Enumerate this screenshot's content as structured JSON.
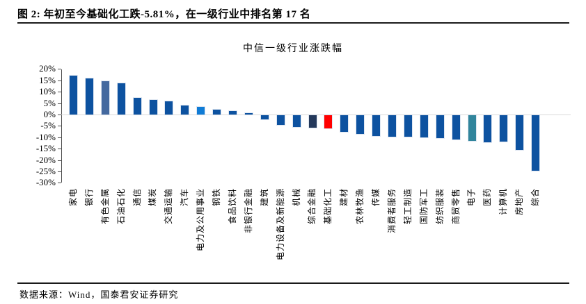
{
  "header": {
    "title": "图 2:  年初至今基础化工跌-5.81%，在一级行业中排名第 17 名"
  },
  "footer": {
    "source": "数据来源：Wind，国泰君安证券研究"
  },
  "chart_data": {
    "type": "bar",
    "title": "中信一级行业涨跌幅",
    "xlabel": "",
    "ylabel": "",
    "ylim": [
      -30,
      20
    ],
    "ytick_step": 5,
    "ytick_labels": [
      "20%",
      "15%",
      "10%",
      "5%",
      "0%",
      "-5%",
      "-10%",
      "-15%",
      "-20%",
      "-25%",
      "-30%"
    ],
    "grid": "zero-baseline-only",
    "legend_position": "none",
    "x_label_rotation": -90,
    "categories": [
      "家电",
      "银行",
      "有色金属",
      "石油石化",
      "通信",
      "煤炭",
      "交通运输",
      "汽车",
      "电力及公用事业",
      "钢铁",
      "食品饮料",
      "非银行金融",
      "建筑",
      "电力设备及新能源",
      "机械",
      "综合金融",
      "基础化工",
      "建材",
      "农林牧渔",
      "传媒",
      "消费者服务",
      "轻工制造",
      "国防军工",
      "纺织服装",
      "商贸零售",
      "电子",
      "医药",
      "计算机",
      "房地产",
      "综合"
    ],
    "values": [
      17.0,
      16.0,
      14.6,
      13.7,
      7.3,
      6.5,
      5.8,
      4.0,
      3.4,
      2.1,
      1.6,
      0.5,
      -1.9,
      -4.3,
      -5.2,
      -5.5,
      -5.81,
      -7.2,
      -8.2,
      -9.2,
      -9.4,
      -9.5,
      -9.9,
      -10.0,
      -10.6,
      -11.3,
      -11.9,
      -11.5,
      -15.3,
      -24.5
    ],
    "colors": {
      "default": "#0D52A0",
      "overrides": {
        "2": "#44699F",
        "8": "#107CD6",
        "15": "#24395B",
        "16": "#FF0000",
        "25": "#31859C"
      },
      "baseline": "#D9D9D9",
      "axis": "#4D4D4D"
    }
  }
}
